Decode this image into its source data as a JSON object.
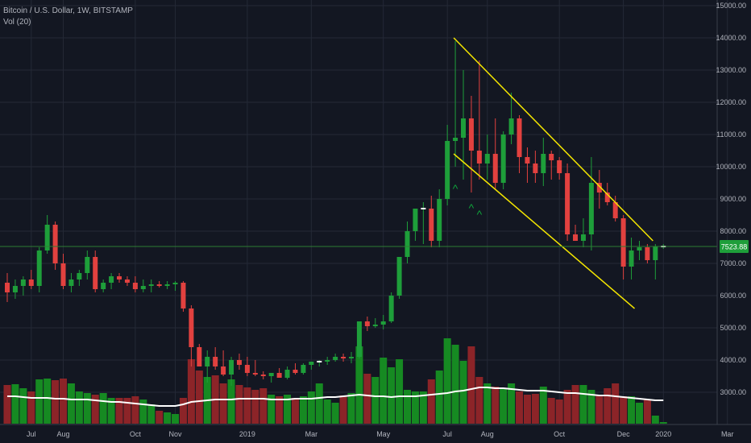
{
  "header": {
    "title": "Bitcoin / U.S. Dollar, 1W, BITSTAMP",
    "indicator": "Vol (20)"
  },
  "colors": {
    "background": "#131722",
    "grid": "#242936",
    "up": "#1e9e3a",
    "down": "#e2413f",
    "volume_up": "#168a22",
    "volume_down": "#8c2428",
    "volume_ma": "#ffffff",
    "channel": "#f4e600",
    "price_line": "#2e7d32",
    "axis_text": "#b2b5be",
    "marker": "#0fa33a"
  },
  "chart_data": {
    "type": "candlestick",
    "title": "Bitcoin / U.S. Dollar, 1W, BITSTAMP",
    "xlabel": "",
    "ylabel": "",
    "grid": true,
    "ylim": [
      2500,
      15000
    ],
    "y_ticks": [
      15000,
      14000,
      13000,
      12000,
      11000,
      10000,
      9000,
      8000,
      7000,
      6000,
      5000,
      4000,
      3000
    ],
    "y_tick_labels": [
      "15000.00",
      "14000.00",
      "13000.00",
      "12000.00",
      "11000.00",
      "10000.00",
      "9000.00",
      "8000.00",
      "7000.00",
      "6000.00",
      "5000.00",
      "4000.00",
      "3000.00"
    ],
    "x_tick_labels": [
      {
        "label": "Jul",
        "week": 3
      },
      {
        "label": "Aug",
        "week": 7
      },
      {
        "label": "Oct",
        "week": 16
      },
      {
        "label": "Nov",
        "week": 21
      },
      {
        "label": "2019",
        "week": 30
      },
      {
        "label": "Mar",
        "week": 38
      },
      {
        "label": "May",
        "week": 47
      },
      {
        "label": "Jul",
        "week": 55
      },
      {
        "label": "Aug",
        "week": 60
      },
      {
        "label": "Oct",
        "week": 69
      },
      {
        "label": "Dec",
        "week": 77
      },
      {
        "label": "2020",
        "week": 82
      },
      {
        "label": "Mar",
        "week": 90
      }
    ],
    "last_price": 7523.88,
    "last_price_label": "7523.88",
    "candles": [
      [
        6400,
        6700,
        5800,
        6100
      ],
      [
        6100,
        6500,
        5900,
        6300
      ],
      [
        6300,
        6600,
        6000,
        6500
      ],
      [
        6500,
        6800,
        6200,
        6300
      ],
      [
        6300,
        7500,
        6100,
        7400
      ],
      [
        7400,
        8500,
        7300,
        8200
      ],
      [
        8200,
        8300,
        6800,
        7000
      ],
      [
        7000,
        7300,
        6200,
        6300
      ],
      [
        6300,
        6700,
        6100,
        6500
      ],
      [
        6500,
        6800,
        6300,
        6700
      ],
      [
        6700,
        7400,
        6500,
        7200
      ],
      [
        7200,
        7400,
        6100,
        6200
      ],
      [
        6200,
        6500,
        6100,
        6400
      ],
      [
        6400,
        6700,
        6200,
        6600
      ],
      [
        6600,
        6700,
        6400,
        6500
      ],
      [
        6500,
        6600,
        6300,
        6400
      ],
      [
        6400,
        6600,
        6100,
        6200
      ],
      [
        6200,
        6500,
        6100,
        6300
      ],
      [
        6300,
        6500,
        6100,
        6350
      ],
      [
        6350,
        6450,
        6250,
        6300
      ],
      [
        6300,
        6450,
        6200,
        6350
      ],
      [
        6350,
        6450,
        6150,
        6400
      ],
      [
        6400,
        6450,
        5500,
        5600
      ],
      [
        5600,
        5700,
        3800,
        4400
      ],
      [
        4400,
        4500,
        3800,
        3800
      ],
      [
        3800,
        4300,
        3300,
        4100
      ],
      [
        4100,
        4400,
        3700,
        3800
      ],
      [
        3800,
        4300,
        3500,
        3550
      ],
      [
        3550,
        4100,
        3200,
        4000
      ],
      [
        4000,
        4200,
        3700,
        3850
      ],
      [
        3850,
        4100,
        3500,
        3600
      ],
      [
        3600,
        4000,
        3500,
        3550
      ],
      [
        3550,
        3650,
        3400,
        3500
      ],
      [
        3500,
        3600,
        3300,
        3600
      ],
      [
        3600,
        3750,
        3450,
        3450
      ],
      [
        3450,
        3800,
        3400,
        3700
      ],
      [
        3700,
        3900,
        3550,
        3600
      ],
      [
        3600,
        3900,
        3550,
        3850
      ],
      [
        3850,
        3950,
        3700,
        3950
      ],
      [
        3950,
        4000,
        3800,
        3950
      ],
      [
        3950,
        4100,
        3850,
        4000
      ],
      [
        4000,
        4200,
        3950,
        4100
      ],
      [
        4100,
        4200,
        3950,
        4050
      ],
      [
        4050,
        4250,
        3900,
        4100
      ],
      [
        4100,
        5200,
        4050,
        5200
      ],
      [
        5200,
        5350,
        4900,
        5050
      ],
      [
        5050,
        5300,
        5000,
        5100
      ],
      [
        5100,
        5400,
        4950,
        5200
      ],
      [
        5200,
        6100,
        5150,
        6000
      ],
      [
        6000,
        7100,
        5900,
        7200
      ],
      [
        7200,
        8300,
        7000,
        8000
      ],
      [
        8000,
        8700,
        7700,
        8700
      ],
      [
        8700,
        8900,
        7600,
        8700
      ],
      [
        8700,
        9100,
        7500,
        7700
      ],
      [
        7700,
        9300,
        7500,
        9000
      ],
      [
        9000,
        11300,
        8800,
        10800
      ],
      [
        10800,
        13900,
        10000,
        10900
      ],
      [
        10900,
        13000,
        9600,
        11500
      ],
      [
        11500,
        12200,
        9200,
        10500
      ],
      [
        10500,
        13300,
        9600,
        10100
      ],
      [
        10100,
        11000,
        9600,
        10400
      ],
      [
        10400,
        11500,
        9300,
        9500
      ],
      [
        9500,
        11100,
        9300,
        11000
      ],
      [
        11000,
        12300,
        10700,
        11500
      ],
      [
        11500,
        11600,
        9800,
        10300
      ],
      [
        10300,
        10600,
        9500,
        10100
      ],
      [
        10100,
        10500,
        9500,
        9800
      ],
      [
        9800,
        10900,
        9400,
        10400
      ],
      [
        10400,
        10500,
        9600,
        10200
      ],
      [
        10200,
        10300,
        9600,
        9800
      ],
      [
        9800,
        10100,
        7700,
        7900
      ],
      [
        7900,
        8200,
        7700,
        7700
      ],
      [
        7700,
        8400,
        7500,
        7900
      ],
      [
        7900,
        10300,
        7400,
        9500
      ],
      [
        9500,
        9900,
        8700,
        9200
      ],
      [
        9200,
        9500,
        8800,
        8900
      ],
      [
        8900,
        9100,
        8300,
        8400
      ],
      [
        8400,
        8500,
        6500,
        6900
      ],
      [
        6900,
        7800,
        6500,
        7400
      ],
      [
        7400,
        7700,
        7100,
        7500
      ],
      [
        7500,
        7600,
        7000,
        7100
      ],
      [
        7100,
        7600,
        6500,
        7523.88
      ],
      [
        7523.88,
        7600,
        7450,
        7523.88
      ]
    ],
    "volume": {
      "name": "Vol (20)",
      "values": [
        48,
        49,
        44,
        40,
        55,
        56,
        54,
        56,
        50,
        40,
        38,
        36,
        38,
        32,
        32,
        32,
        34,
        30,
        24,
        16,
        14,
        12,
        32,
        80,
        66,
        58,
        60,
        50,
        55,
        48,
        45,
        42,
        44,
        36,
        34,
        36,
        32,
        34,
        40,
        50,
        30,
        26,
        35,
        38,
        96,
        62,
        58,
        82,
        70,
        80,
        42,
        40,
        40,
        55,
        66,
        106,
        98,
        78,
        96,
        58,
        50,
        46,
        44,
        50,
        40,
        36,
        37,
        46,
        32,
        30,
        42,
        48,
        48,
        42,
        36,
        44,
        50,
        34,
        34,
        26,
        30,
        10,
        2
      ],
      "ma": [
        34,
        34,
        33,
        32,
        32,
        32,
        31,
        31,
        30,
        30,
        30,
        29,
        28,
        27,
        27,
        26,
        25,
        24,
        23,
        22,
        22,
        22,
        24,
        27,
        28,
        29,
        30,
        30,
        30,
        31,
        31,
        31,
        31,
        30,
        30,
        30,
        31,
        31,
        31,
        32,
        33,
        33,
        34,
        35,
        36,
        35,
        34,
        34,
        33,
        34,
        34,
        34,
        35,
        36,
        37,
        38,
        40,
        41,
        43,
        45,
        45,
        44,
        44,
        43,
        42,
        41,
        41,
        41,
        40,
        39,
        38,
        38,
        37,
        36,
        35,
        35,
        34,
        33,
        32,
        31,
        30,
        29,
        29
      ],
      "ylim": [
        0,
        120
      ]
    },
    "volume_scale": {
      "pixel_value_per_unit": null
    },
    "channel_lines": [
      {
        "name": "",
        "points": [
          [
            55.8,
            14000
          ],
          [
            80.7,
            7700
          ]
        ]
      },
      {
        "name": "",
        "points": [
          [
            55.8,
            10400
          ],
          [
            78.4,
            5600
          ]
        ]
      }
    ],
    "markers": [
      {
        "week": 56,
        "value": 9200,
        "text": "^"
      },
      {
        "week": 58,
        "value": 8600,
        "text": "^"
      },
      {
        "week": 59,
        "value": 8400,
        "text": "^"
      }
    ]
  }
}
